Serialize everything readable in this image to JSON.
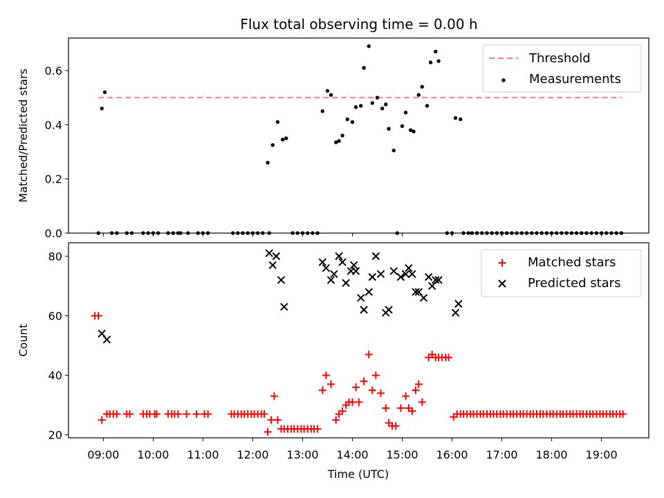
{
  "title": "Flux total observing time = 0.00 h",
  "chart_data": [
    {
      "type": "scatter",
      "panel": "top",
      "ylabel": "Matched/Predicted stars",
      "ylim": [
        0,
        0.72
      ],
      "yticks": [
        0.0,
        0.2,
        0.4,
        0.6
      ],
      "xlim_hours": [
        8.3,
        19.95
      ],
      "legend_position": "top-right",
      "threshold": {
        "name": "Threshold",
        "value": 0.5,
        "x_range": [
          8.9,
          19.4
        ],
        "color": "#ff7f7f",
        "style": "dashed"
      },
      "series": [
        {
          "name": "Measurements",
          "color": "#000000",
          "x": [
            8.9,
            8.97,
            9.03,
            9.17,
            9.27,
            9.47,
            9.57,
            9.8,
            9.9,
            10.0,
            10.1,
            10.3,
            10.4,
            10.5,
            10.55,
            10.7,
            10.9,
            11.0,
            11.1,
            11.6,
            11.7,
            11.8,
            11.9,
            12.0,
            12.1,
            12.2,
            12.3,
            12.33,
            12.4,
            12.5,
            12.6,
            12.67,
            12.8,
            12.9,
            13.0,
            13.1,
            13.2,
            13.3,
            13.4,
            13.5,
            13.57,
            13.67,
            13.73,
            13.8,
            13.9,
            14.0,
            14.07,
            14.17,
            14.23,
            14.33,
            14.4,
            14.5,
            14.6,
            14.67,
            14.73,
            14.83,
            14.9,
            15.0,
            15.07,
            15.17,
            15.23,
            15.33,
            15.4,
            15.5,
            15.57,
            15.67,
            15.73,
            15.9,
            16.0,
            16.07,
            16.17,
            16.23,
            16.33,
            16.4,
            16.5,
            16.6,
            16.7,
            16.8,
            16.9,
            17.0,
            17.1,
            17.2,
            17.3,
            17.4,
            17.5,
            17.6,
            17.7,
            17.8,
            17.9,
            18.0,
            18.1,
            18.2,
            18.3,
            18.4,
            18.5,
            18.6,
            18.7,
            18.8,
            18.9,
            19.0,
            19.1,
            19.2,
            19.3,
            19.4
          ],
          "y": [
            0,
            0.46,
            0.52,
            0,
            0,
            0,
            0,
            0,
            0,
            0,
            0,
            0,
            0,
            0,
            0,
            0,
            0,
            0,
            0,
            0,
            0,
            0,
            0,
            0,
            0,
            0,
            0.26,
            0,
            0.325,
            0.41,
            0.345,
            0.35,
            0,
            0,
            0,
            0,
            0,
            0,
            0.45,
            0.525,
            0.51,
            0.335,
            0.34,
            0.36,
            0.42,
            0.41,
            0.465,
            0.47,
            0.61,
            0.69,
            0.48,
            0.5,
            0.46,
            0.475,
            0.385,
            0.305,
            0,
            0.395,
            0.445,
            0.38,
            0.375,
            0.51,
            0.54,
            0.47,
            0.63,
            0.67,
            0.635,
            0,
            0,
            0.425,
            0.42,
            0,
            0,
            0,
            0,
            0,
            0,
            0,
            0,
            0,
            0,
            0,
            0,
            0,
            0,
            0,
            0,
            0,
            0,
            0,
            0,
            0,
            0,
            0,
            0,
            0,
            0,
            0,
            0,
            0,
            0,
            0,
            0,
            0
          ]
        }
      ]
    },
    {
      "type": "scatter",
      "panel": "bottom",
      "xlabel": "Time (UTC)",
      "ylabel": "Count",
      "ylim": [
        19,
        84.5
      ],
      "yticks": [
        20,
        40,
        60,
        80
      ],
      "xlim_hours": [
        8.3,
        19.95
      ],
      "xticks": [
        9,
        10,
        11,
        12,
        13,
        14,
        15,
        16,
        17,
        18,
        19
      ],
      "xticklabels": [
        "09:00",
        "10:00",
        "11:00",
        "12:00",
        "13:00",
        "14:00",
        "15:00",
        "16:00",
        "17:00",
        "18:00",
        "19:00"
      ],
      "legend_position": "top-right",
      "series": [
        {
          "name": "Matched stars",
          "marker": "plus",
          "color": "#ff0000",
          "x": [
            8.83,
            8.9,
            8.97,
            9.07,
            9.13,
            9.2,
            9.27,
            9.47,
            9.53,
            9.8,
            9.87,
            9.93,
            10.03,
            10.07,
            10.3,
            10.37,
            10.43,
            10.5,
            10.67,
            10.87,
            11.03,
            11.1,
            11.57,
            11.63,
            11.7,
            11.77,
            11.83,
            11.9,
            11.97,
            12.03,
            12.1,
            12.17,
            12.23,
            12.3,
            12.37,
            12.43,
            12.5,
            12.57,
            12.63,
            12.7,
            12.77,
            12.83,
            12.9,
            12.97,
            13.03,
            13.1,
            13.17,
            13.23,
            13.3,
            13.4,
            13.47,
            13.57,
            13.67,
            13.73,
            13.8,
            13.87,
            13.93,
            14.0,
            14.07,
            14.13,
            14.23,
            14.33,
            14.4,
            14.47,
            14.57,
            14.67,
            14.73,
            14.8,
            14.87,
            14.97,
            15.07,
            15.13,
            15.2,
            15.27,
            15.33,
            15.4,
            15.53,
            15.6,
            15.67,
            15.73,
            15.8,
            15.87,
            15.93,
            16.03,
            16.1,
            16.17,
            16.23,
            16.3,
            16.37,
            16.43,
            16.5,
            16.57,
            16.63,
            16.7,
            16.77,
            16.83,
            16.9,
            16.97,
            17.03,
            17.1,
            17.17,
            17.23,
            17.3,
            17.37,
            17.43,
            17.5,
            17.57,
            17.63,
            17.7,
            17.77,
            17.83,
            17.9,
            17.97,
            18.03,
            18.1,
            18.17,
            18.23,
            18.3,
            18.37,
            18.43,
            18.5,
            18.57,
            18.63,
            18.7,
            18.77,
            18.83,
            18.9,
            18.97,
            19.03,
            19.1,
            19.17,
            19.23,
            19.3,
            19.37,
            19.43
          ],
          "y": [
            60,
            60,
            25,
            27,
            27,
            27,
            27,
            27,
            27,
            27,
            27,
            27,
            27,
            27,
            27,
            27,
            27,
            27,
            27,
            27,
            27,
            27,
            27,
            27,
            27,
            27,
            27,
            27,
            27,
            27,
            27,
            27,
            27,
            21,
            25,
            33,
            25,
            22,
            22,
            22,
            22,
            22,
            22,
            22,
            22,
            22,
            22,
            22,
            22,
            35,
            40,
            37,
            25,
            27,
            28,
            30,
            31,
            31,
            36,
            31,
            38,
            47,
            35,
            40,
            34,
            29,
            24,
            23,
            23,
            29,
            33,
            29,
            28,
            35,
            37,
            31,
            46,
            47,
            46,
            46,
            46,
            46,
            46,
            26,
            27,
            27,
            27,
            27,
            27,
            27,
            27,
            27,
            27,
            27,
            27,
            27,
            27,
            27,
            27,
            27,
            27,
            27,
            27,
            27,
            27,
            27,
            27,
            27,
            27,
            27,
            27,
            27,
            27,
            27,
            27,
            27,
            27,
            27,
            27,
            27,
            27,
            27,
            27,
            27,
            27,
            27,
            27,
            27,
            27,
            27,
            27,
            27,
            27,
            27,
            27
          ]
        },
        {
          "name": "Predicted stars",
          "marker": "x",
          "color": "#000000",
          "x": [
            8.97,
            9.07,
            12.33,
            12.4,
            12.47,
            12.57,
            12.63,
            13.4,
            13.47,
            13.57,
            13.63,
            13.73,
            13.8,
            13.87,
            13.97,
            14.03,
            14.07,
            14.17,
            14.23,
            14.33,
            14.4,
            14.47,
            14.57,
            14.67,
            14.73,
            14.83,
            14.97,
            15.07,
            15.13,
            15.2,
            15.27,
            15.33,
            15.43,
            15.53,
            15.6,
            15.67,
            15.73,
            16.07,
            16.13
          ],
          "y": [
            54,
            52,
            81,
            77,
            80,
            72,
            63,
            78,
            76,
            72,
            74,
            80,
            78,
            71,
            75,
            77,
            75,
            66,
            62,
            68,
            73,
            80,
            74,
            61,
            62,
            75,
            73,
            74,
            76,
            74,
            68,
            68,
            66,
            73,
            70,
            72,
            72,
            61,
            64
          ]
        }
      ]
    }
  ]
}
